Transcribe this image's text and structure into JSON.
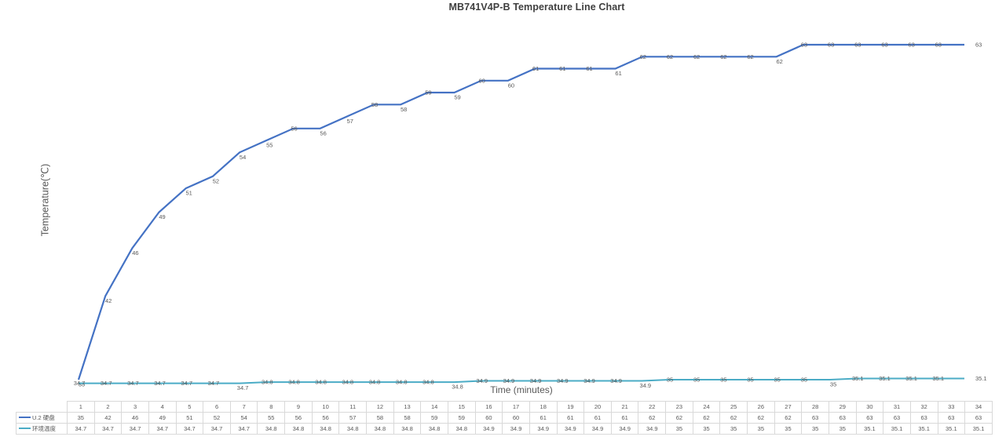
{
  "title": "MB741V4P-B Temperature Line Chart",
  "colors": {
    "series1": "#4472c4",
    "series2": "#4bacc6",
    "label_text": "#595959",
    "title_text": "#3f3f3f",
    "table_border": "#d9d9d9"
  },
  "chart_data": {
    "type": "line",
    "title": "MB741V4P-B Temperature Line Chart",
    "xlabel": "Time (minutes)",
    "ylabel": "Temperature(℃)",
    "x": [
      1,
      2,
      3,
      4,
      5,
      6,
      7,
      8,
      9,
      10,
      11,
      12,
      13,
      14,
      15,
      16,
      17,
      18,
      19,
      20,
      21,
      22,
      23,
      24,
      25,
      26,
      27,
      28,
      29,
      30,
      31,
      32,
      33,
      34
    ],
    "series": [
      {
        "name": "U.2 硬盘",
        "color": "#4472c4",
        "values": [
          35,
          42,
          46,
          49,
          51,
          52,
          54,
          55,
          56,
          56,
          57,
          58,
          58,
          59,
          59,
          60,
          60,
          61,
          61,
          61,
          61,
          62,
          62,
          62,
          62,
          62,
          62,
          63,
          63,
          63,
          63,
          63,
          63,
          63
        ]
      },
      {
        "name": "环境温度",
        "color": "#4bacc6",
        "values": [
          34.7,
          34.7,
          34.7,
          34.7,
          34.7,
          34.7,
          34.7,
          34.8,
          34.8,
          34.8,
          34.8,
          34.8,
          34.8,
          34.8,
          34.8,
          34.9,
          34.9,
          34.9,
          34.9,
          34.9,
          34.9,
          34.9,
          35,
          35,
          35,
          35,
          35,
          35,
          35,
          35.1,
          35.1,
          35.1,
          35.1,
          35.1
        ]
      }
    ],
    "data_labels": true,
    "grid": false,
    "legend_position": "table-left",
    "ylim": [
      34.5,
      64
    ]
  }
}
